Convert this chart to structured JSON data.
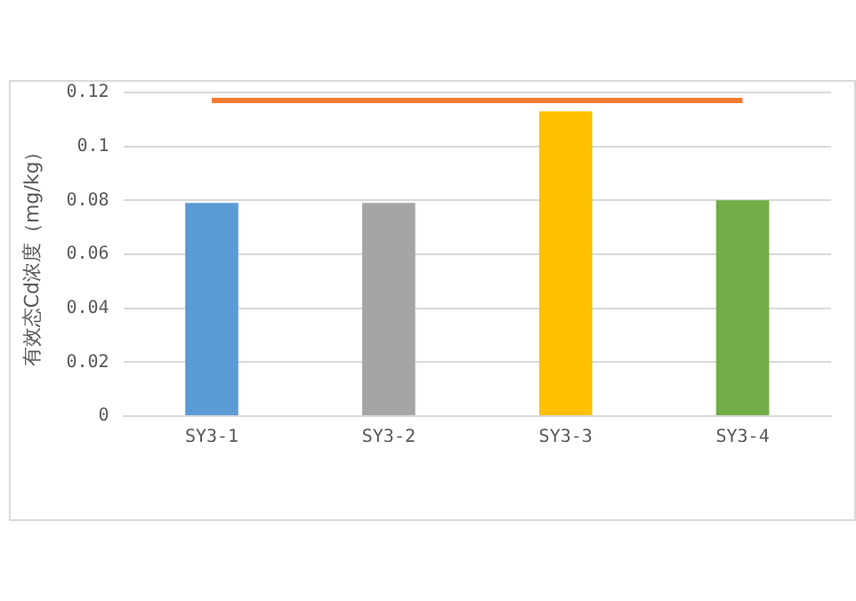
{
  "chart_data": {
    "type": "bar",
    "ylabel": "有效态Cd浓度（mg/kg）",
    "categories": [
      "SY3-1",
      "SY3-2",
      "SY3-3",
      "SY3-4"
    ],
    "values": [
      0.079,
      0.079,
      0.113,
      0.08
    ],
    "colors": [
      "#5b9bd5",
      "#a5a5a5",
      "#ffc000",
      "#70ad47"
    ],
    "ylim": [
      0,
      0.12
    ],
    "yticks": [
      0,
      0.02,
      0.04,
      0.06,
      0.08,
      0.1,
      0.12
    ],
    "grid": "y",
    "legend": false,
    "ref_lines": [
      {
        "axis": "y",
        "value": 0.117,
        "color": "#ed7d31"
      }
    ]
  }
}
